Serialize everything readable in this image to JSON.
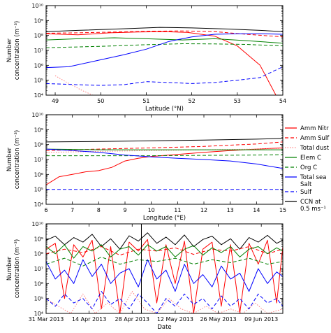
{
  "chart_data": [
    {
      "type": "line",
      "xlabel": "Latitude (°N)",
      "ylabel": "Number concentration (m⁻³)",
      "xlim": [
        48.8,
        54
      ],
      "ylim_log10": [
        4,
        10
      ],
      "xticks": [
        49,
        50,
        51,
        52,
        53,
        54
      ],
      "yticks": [
        "10⁴",
        "10⁵",
        "10⁶",
        "10⁷",
        "10⁸",
        "10⁹",
        "10¹⁰"
      ],
      "series": [
        {
          "name": "CCN at 0.5 ms⁻¹",
          "color": "#000000",
          "dash": "solid",
          "x": [
            48.8,
            49.5,
            50.5,
            51.3,
            52.0,
            52.8,
            53.5,
            54.0
          ],
          "y": [
            180000000.0,
            220000000.0,
            280000000.0,
            350000000.0,
            320000000.0,
            270000000.0,
            220000000.0,
            180000000.0
          ]
        },
        {
          "name": "Amm Nitr",
          "color": "#ff0000",
          "dash": "solid",
          "x": [
            48.8,
            49.5,
            50.2,
            50.8,
            51.4,
            51.9,
            52.5,
            53.0,
            53.5,
            53.9
          ],
          "y": [
            130000000.0,
            110000000.0,
            150000000.0,
            170000000.0,
            180000000.0,
            160000000.0,
            90000000.0,
            20000000.0,
            1000000.0,
            5000.0
          ]
        },
        {
          "name": "Amm Sulf",
          "color": "#ff0000",
          "dash": "dashed",
          "x": [
            48.8,
            49.5,
            50.3,
            51.0,
            51.8,
            52.5,
            53.2,
            54.0
          ],
          "y": [
            140000000.0,
            150000000.0,
            170000000.0,
            190000000.0,
            200000000.0,
            180000000.0,
            120000000.0,
            80000000.0
          ]
        },
        {
          "name": "Total dust",
          "color": "#ff7f7f",
          "dash": "dotted",
          "x": [
            49.0,
            49.3,
            49.6,
            49.9,
            50.1
          ],
          "y": [
            200000.0,
            60000.0,
            20000.0,
            8000.0,
            4000.0
          ]
        },
        {
          "name": "Elem C",
          "color": "#008000",
          "dash": "solid",
          "x": [
            48.8,
            49.5,
            50.3,
            51.0,
            51.8,
            52.5,
            53.2,
            54.0
          ],
          "y": [
            50000000.0,
            60000000.0,
            70000000.0,
            60000000.0,
            50000000.0,
            60000000.0,
            45000000.0,
            30000000.0
          ]
        },
        {
          "name": "Org C",
          "color": "#008000",
          "dash": "dashed",
          "x": [
            48.8,
            49.5,
            50.3,
            51.0,
            51.8,
            52.5,
            53.2,
            54.0
          ],
          "y": [
            15000000.0,
            17000000.0,
            20000000.0,
            24000000.0,
            28000000.0,
            27000000.0,
            25000000.0,
            20000000.0
          ]
        },
        {
          "name": "Total sea Salt",
          "color": "#0000ff",
          "dash": "solid",
          "x": [
            48.8,
            49.3,
            49.9,
            50.5,
            51.0,
            51.5,
            52.0,
            52.5,
            53.0,
            53.5,
            54.0
          ],
          "y": [
            700000.0,
            800000.0,
            2000000.0,
            5000000.0,
            12000000.0,
            40000000.0,
            80000000.0,
            120000000.0,
            130000000.0,
            130000000.0,
            120000000.0
          ]
        },
        {
          "name": "Sulf",
          "color": "#0000ff",
          "dash": "dashed",
          "x": [
            48.8,
            49.5,
            50.0,
            50.5,
            51.0,
            51.5,
            52.0,
            52.5,
            53.0,
            53.5,
            54.0
          ],
          "y": [
            60000.0,
            50000.0,
            45000.0,
            50000.0,
            80000.0,
            70000.0,
            60000.0,
            70000.0,
            100000.0,
            150000.0,
            800000.0
          ]
        }
      ]
    },
    {
      "type": "line",
      "xlabel": "Longitude (°E)",
      "ylabel": "Number concentration (m⁻³)",
      "xlim": [
        6,
        15
      ],
      "ylim_log10": [
        4,
        10
      ],
      "xticks": [
        6,
        7,
        8,
        9,
        10,
        11,
        12,
        13,
        14,
        15
      ],
      "yticks": [
        "10⁴",
        "10⁵",
        "10⁶",
        "10⁷",
        "10⁸",
        "10⁹",
        "10¹⁰"
      ],
      "series": [
        {
          "name": "CCN at 0.5 ms⁻¹",
          "color": "#000000",
          "dash": "solid",
          "x": [
            6,
            8,
            10,
            12,
            14,
            15
          ],
          "y": [
            150000000.0,
            160000000.0,
            180000000.0,
            200000000.0,
            230000000.0,
            260000000.0
          ]
        },
        {
          "name": "Amm Nitr",
          "color": "#ff0000",
          "dash": "solid",
          "x": [
            6,
            6.5,
            7,
            7.5,
            8,
            8.5,
            9,
            9.5,
            10,
            11,
            12,
            13,
            14,
            15
          ],
          "y": [
            200000.0,
            700000.0,
            1000000.0,
            1500000.0,
            1800000.0,
            3000000.0,
            8000000.0,
            12000000.0,
            16000000.0,
            22000000.0,
            30000000.0,
            40000000.0,
            50000000.0,
            60000000.0
          ]
        },
        {
          "name": "Amm Sulf",
          "color": "#ff0000",
          "dash": "dashed",
          "x": [
            6,
            8,
            10,
            12,
            14,
            15
          ],
          "y": [
            40000000.0,
            50000000.0,
            60000000.0,
            75000000.0,
            110000000.0,
            150000000.0
          ]
        },
        {
          "name": "Total dust",
          "color": "#ff7f7f",
          "dash": "dotted",
          "x": [
            6,
            8,
            10,
            12,
            14,
            15
          ],
          "y": [
            30000000.0,
            35000000.0,
            40000000.0,
            45000000.0,
            50000000.0,
            55000000.0
          ]
        },
        {
          "name": "Elem C",
          "color": "#008000",
          "dash": "solid",
          "x": [
            6,
            8,
            10,
            12,
            14,
            15
          ],
          "y": [
            50000000.0,
            45000000.0,
            45000000.0,
            45000000.0,
            45000000.0,
            45000000.0
          ]
        },
        {
          "name": "Org C",
          "color": "#008000",
          "dash": "dashed",
          "x": [
            6,
            8,
            10,
            12,
            14,
            15
          ],
          "y": [
            18000000.0,
            18000000.0,
            18000000.0,
            19000000.0,
            20000000.0,
            21000000.0
          ]
        },
        {
          "name": "Total sea Salt",
          "color": "#0000ff",
          "dash": "solid",
          "x": [
            6,
            7,
            8,
            9,
            10,
            11,
            12,
            13,
            14,
            15
          ],
          "y": [
            50000000.0,
            40000000.0,
            30000000.0,
            20000000.0,
            15000000.0,
            12000000.0,
            10000000.0,
            8000000.0,
            5000000.0,
            2500000.0
          ]
        },
        {
          "name": "Sulf",
          "color": "#0000ff",
          "dash": "dashed",
          "x": [
            6,
            8,
            10,
            12,
            14,
            15
          ],
          "y": [
            100000.0,
            100000.0,
            100000.0,
            100000.0,
            100000.0,
            100000.0
          ]
        }
      ]
    },
    {
      "type": "line",
      "xlabel": "Date",
      "ylabel": "Number concentration (m⁻³)",
      "xlim_days": [
        0,
        77
      ],
      "ylim_log10": [
        4,
        10
      ],
      "xticks": [
        {
          "d": 0,
          "label": "31 Mar 2013"
        },
        {
          "d": 14,
          "label": "14 Apr 2013"
        },
        {
          "d": 28,
          "label": "28 Apr 2013"
        },
        {
          "d": 42,
          "label": "12 May 2013"
        },
        {
          "d": 56,
          "label": "26 May 2013"
        },
        {
          "d": 70,
          "label": "09 Jun 2013"
        }
      ],
      "yticks": [
        "10⁴",
        "10⁵",
        "10⁶",
        "10⁷",
        "10⁸",
        "10⁹",
        "10¹⁰"
      ],
      "marker_line_day": 31,
      "series": [
        {
          "name": "CCN at 0.5 ms⁻¹",
          "color": "#000000",
          "dash": "solid",
          "x": [
            0,
            3,
            6,
            9,
            12,
            15,
            18,
            21,
            24,
            27,
            30,
            33,
            36,
            39,
            42,
            45,
            48,
            51,
            54,
            57,
            60,
            63,
            66,
            69,
            72,
            75,
            77
          ],
          "y": [
            800000000.0,
            1500000000.0,
            400000000.0,
            1200000000.0,
            600000000.0,
            2000000000.0,
            300000000.0,
            1000000000.0,
            200000000.0,
            1600000000.0,
            700000000.0,
            2500000000.0,
            500000000.0,
            1300000000.0,
            400000000.0,
            1800000000.0,
            300000000.0,
            900000000.0,
            1500000000.0,
            400000000.0,
            1000000000.0,
            200000000.0,
            1200000000.0,
            600000000.0,
            1700000000.0,
            500000000.0,
            800000000.0
          ]
        },
        {
          "name": "Amm Nitr",
          "color": "#ff0000",
          "dash": "solid",
          "x": [
            0,
            3,
            6,
            9,
            12,
            15,
            18,
            21,
            24,
            27,
            30,
            33,
            36,
            39,
            42,
            45,
            48,
            51,
            54,
            57,
            60,
            63,
            66,
            69,
            72,
            75,
            77
          ],
          "y": [
            200000000.0,
            500000000.0,
            100000.0,
            400000000.0,
            60000000.0,
            800000000.0,
            20000.0,
            300000000.0,
            10000.0,
            600000000.0,
            150000000.0,
            900000000.0,
            50000.0,
            400000000.0,
            1000000.0,
            700000000.0,
            10000.0,
            200000000.0,
            600000000.0,
            30000.0,
            400000000.0,
            10000.0,
            500000000.0,
            20000000.0,
            800000000.0,
            50000.0,
            300000000.0
          ]
        },
        {
          "name": "Amm Sulf",
          "color": "#ff0000",
          "dash": "dashed",
          "x": [
            0,
            6,
            12,
            18,
            24,
            30,
            36,
            42,
            48,
            54,
            60,
            66,
            72,
            77
          ],
          "y": [
            100000000.0,
            200000000.0,
            120000000.0,
            300000000.0,
            80000000.0,
            200000000.0,
            150000000.0,
            250000000.0,
            90000000.0,
            200000000.0,
            150000000.0,
            300000000.0,
            100000000.0,
            200000000.0
          ]
        },
        {
          "name": "Total dust",
          "color": "#ff7f7f",
          "dash": "dotted",
          "x": [
            0,
            4,
            8,
            12,
            16,
            20,
            24,
            28,
            32,
            36,
            40,
            44,
            48,
            52,
            56,
            60,
            64,
            68,
            72,
            77
          ],
          "y": [
            100000.0,
            30000.0,
            10000.0,
            200000.0,
            10000.0,
            50000.0,
            10000.0,
            300000.0,
            20000.0,
            10000.0,
            100000.0,
            20000.0,
            10000.0,
            30000.0,
            10000.0,
            20000.0,
            10000.0,
            50000.0,
            10000.0,
            20000.0
          ]
        },
        {
          "name": "Elem C",
          "color": "#008000",
          "dash": "solid",
          "x": [
            0,
            3,
            6,
            9,
            12,
            15,
            18,
            21,
            24,
            27,
            30,
            33,
            36,
            39,
            42,
            45,
            48,
            51,
            54,
            57,
            60,
            63,
            66,
            69,
            72,
            75,
            77
          ],
          "y": [
            300000000.0,
            100000000.0,
            400000000.0,
            50000000.0,
            300000000.0,
            150000000.0,
            400000000.0,
            60000000.0,
            200000000.0,
            300000000.0,
            80000000.0,
            400000000.0,
            150000000.0,
            300000000.0,
            60000000.0,
            200000000.0,
            350000000.0,
            80000000.0,
            250000000.0,
            120000000.0,
            300000000.0,
            60000000.0,
            200000000.0,
            300000000.0,
            100000000.0,
            250000000.0,
            150000000.0
          ]
        },
        {
          "name": "Org C",
          "color": "#008000",
          "dash": "dashed",
          "x": [
            0,
            6,
            12,
            18,
            24,
            30,
            36,
            42,
            48,
            54,
            60,
            66,
            72,
            77
          ],
          "y": [
            20000000.0,
            50000000.0,
            15000000.0,
            60000000.0,
            20000000.0,
            40000000.0,
            30000000.0,
            50000000.0,
            20000000.0,
            40000000.0,
            25000000.0,
            50000000.0,
            20000000.0,
            30000000.0
          ]
        },
        {
          "name": "Total sea Salt",
          "color": "#0000ff",
          "dash": "solid",
          "x": [
            0,
            3,
            6,
            9,
            12,
            15,
            18,
            21,
            24,
            27,
            30,
            33,
            36,
            39,
            42,
            45,
            48,
            51,
            54,
            57,
            60,
            63,
            66,
            69,
            72,
            75,
            77
          ],
          "y": [
            30000000.0,
            2000000.0,
            8000000.0,
            1000000.0,
            40000000.0,
            3000000.0,
            20000000.0,
            1000000.0,
            5000000.0,
            10000000.0,
            600000.0,
            40000000.0,
            2000000.0,
            8000000.0,
            300000.0,
            20000000.0,
            1000000.0,
            4000000.0,
            600000.0,
            15000000.0,
            2000000.0,
            5000000.0,
            300000.0,
            10000000.0,
            1000000.0,
            6000000.0,
            3000000.0
          ]
        },
        {
          "name": "Sulf",
          "color": "#0000ff",
          "dash": "dashed",
          "x": [
            0,
            3,
            6,
            9,
            12,
            15,
            18,
            21,
            24,
            27,
            30,
            33,
            36,
            39,
            42,
            45,
            48,
            51,
            54,
            57,
            60,
            63,
            66,
            69,
            72,
            75,
            77
          ],
          "y": [
            100000.0,
            30000.0,
            200000.0,
            50000.0,
            100000.0,
            20000.0,
            300000.0,
            40000.0,
            100000.0,
            20000.0,
            200000.0,
            50000.0,
            10000.0,
            100000.0,
            30000.0,
            200000.0,
            40000.0,
            100000.0,
            20000.0,
            150000.0,
            30000.0,
            100000.0,
            20000.0,
            200000.0,
            50000.0,
            100000.0,
            30000.0
          ]
        }
      ]
    }
  ],
  "legend": {
    "placement": "right of middle panel",
    "entries": [
      {
        "label": "Amm Nitr",
        "color": "#ff0000",
        "dash": "solid"
      },
      {
        "label": "Amm Sulf",
        "color": "#ff0000",
        "dash": "dashed"
      },
      {
        "label": "Total dust",
        "color": "#ff7f7f",
        "dash": "dotted"
      },
      {
        "label": "Elem C",
        "color": "#008000",
        "dash": "solid"
      },
      {
        "label": "Org C",
        "color": "#008000",
        "dash": "dashed"
      },
      {
        "label": "Total sea\nSalt",
        "color": "#0000ff",
        "dash": "solid"
      },
      {
        "label": "Sulf",
        "color": "#0000ff",
        "dash": "dashed"
      },
      {
        "label": "CCN at\n0.5 ms⁻¹",
        "color": "#000000",
        "dash": "solid"
      }
    ]
  }
}
